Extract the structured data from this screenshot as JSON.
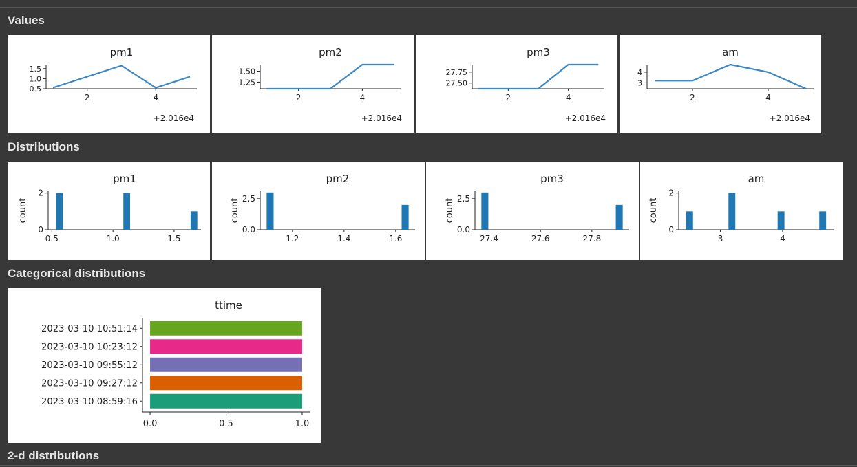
{
  "sections": {
    "values": "Values",
    "distributions": "Distributions",
    "categorical": "Categorical distributions",
    "twod": "2-d distributions"
  },
  "colors": {
    "line": "#3b87c4",
    "bar": "#1f77b4",
    "axis": "#222222"
  },
  "chart_data": [
    {
      "id": "values-pm1",
      "type": "line",
      "title": "pm1",
      "x": [
        1,
        2,
        3,
        4,
        5
      ],
      "y": [
        0.55,
        1.1,
        1.65,
        0.55,
        1.1
      ],
      "xlim": [
        0.8,
        5.2
      ],
      "ylim": [
        0.5,
        1.7
      ],
      "xticks": [
        2,
        4
      ],
      "xtick_labels": [
        "2",
        "4"
      ],
      "yticks": [
        0.5,
        1.0,
        1.5
      ],
      "ytick_labels": [
        "0.5",
        "1.0",
        "1.5"
      ],
      "offset": "+2.016e4"
    },
    {
      "id": "values-pm2",
      "type": "line",
      "title": "pm2",
      "x": [
        1,
        2,
        3,
        4,
        5
      ],
      "y": [
        1.1,
        1.1,
        1.1,
        1.65,
        1.65
      ],
      "xlim": [
        0.8,
        5.2
      ],
      "ylim": [
        1.1,
        1.65
      ],
      "xticks": [
        2,
        4
      ],
      "xtick_labels": [
        "2",
        "4"
      ],
      "yticks": [
        1.25,
        1.5
      ],
      "ytick_labels": [
        "1.25",
        "1.50"
      ],
      "offset": "+2.016e4"
    },
    {
      "id": "values-pm3",
      "type": "line",
      "title": "pm3",
      "x": [
        1,
        2,
        3,
        4,
        5
      ],
      "y": [
        27.37,
        27.37,
        27.37,
        27.92,
        27.92
      ],
      "xlim": [
        0.8,
        5.2
      ],
      "ylim": [
        27.37,
        27.92
      ],
      "xticks": [
        2,
        4
      ],
      "xtick_labels": [
        "2",
        "4"
      ],
      "yticks": [
        27.5,
        27.75
      ],
      "ytick_labels": [
        "27.50",
        "27.75"
      ],
      "offset": "+2.016e4"
    },
    {
      "id": "values-am",
      "type": "line",
      "title": "am",
      "x": [
        1,
        2,
        3,
        4,
        5
      ],
      "y": [
        3.2,
        3.2,
        4.7,
        4.0,
        2.45
      ],
      "xlim": [
        0.8,
        5.2
      ],
      "ylim": [
        2.45,
        4.7
      ],
      "xticks": [
        2,
        4
      ],
      "xtick_labels": [
        "2",
        "4"
      ],
      "yticks": [
        3,
        4
      ],
      "ytick_labels": [
        "3",
        "4"
      ],
      "offset": "+2.016e4"
    },
    {
      "id": "dist-pm1",
      "type": "bar",
      "title": "pm1",
      "ylabel": "count",
      "bins": [
        [
          0.535,
          0.59,
          2
        ],
        [
          1.085,
          1.14,
          2
        ],
        [
          1.635,
          1.69,
          1
        ]
      ],
      "xlim": [
        0.47,
        1.72
      ],
      "ylim": [
        0,
        2.1
      ],
      "xticks": [
        0.5,
        1.0,
        1.5
      ],
      "xtick_labels": [
        "0.5",
        "1.0",
        "1.5"
      ],
      "yticks": [
        0,
        2
      ],
      "ytick_labels": [
        "0",
        "2"
      ]
    },
    {
      "id": "dist-pm2",
      "type": "bar",
      "title": "pm2",
      "ylabel": "count",
      "bins": [
        [
          1.1,
          1.127,
          3
        ],
        [
          1.623,
          1.65,
          2
        ]
      ],
      "xlim": [
        1.075,
        1.675
      ],
      "ylim": [
        0,
        3.1
      ],
      "xticks": [
        1.2,
        1.4,
        1.6
      ],
      "xtick_labels": [
        "1.2",
        "1.4",
        "1.6"
      ],
      "yticks": [
        0,
        2.5
      ],
      "ytick_labels": [
        "0.0",
        "2.5"
      ]
    },
    {
      "id": "dist-pm3",
      "type": "bar",
      "title": "pm3",
      "ylabel": "count",
      "bins": [
        [
          27.37,
          27.397,
          3
        ],
        [
          27.893,
          27.92,
          2
        ]
      ],
      "xlim": [
        27.345,
        27.945
      ],
      "ylim": [
        0,
        3.1
      ],
      "xticks": [
        27.4,
        27.6,
        27.8
      ],
      "xtick_labels": [
        "27.4",
        "27.6",
        "27.8"
      ],
      "yticks": [
        0,
        2.5
      ],
      "ytick_labels": [
        "0.0",
        "2.5"
      ]
    },
    {
      "id": "dist-am",
      "type": "bar",
      "title": "am",
      "ylabel": "count",
      "bins": [
        [
          2.45,
          2.56,
          1
        ],
        [
          3.13,
          3.24,
          2
        ],
        [
          3.92,
          4.03,
          1
        ],
        [
          4.59,
          4.7,
          1
        ]
      ],
      "xlim": [
        2.33,
        4.82
      ],
      "ylim": [
        0,
        2.1
      ],
      "xticks": [
        3,
        4
      ],
      "xtick_labels": [
        "3",
        "4"
      ],
      "yticks": [
        0,
        2
      ],
      "ytick_labels": [
        "0",
        "2"
      ]
    },
    {
      "id": "cat-ttime",
      "type": "hbar",
      "title": "ttime",
      "categories": [
        "2023-03-10 10:51:14",
        "2023-03-10 10:23:12",
        "2023-03-10 09:55:12",
        "2023-03-10 09:27:12",
        "2023-03-10 08:59:16"
      ],
      "values": [
        1,
        1,
        1,
        1,
        1
      ],
      "bar_colors": [
        "#66a61e",
        "#e7298a",
        "#7570b3",
        "#d95f02",
        "#1b9e77"
      ],
      "xlim": [
        -0.05,
        1.05
      ],
      "xticks": [
        0,
        0.5,
        1.0
      ],
      "xtick_labels": [
        "0.0",
        "0.5",
        "1.0"
      ]
    }
  ]
}
